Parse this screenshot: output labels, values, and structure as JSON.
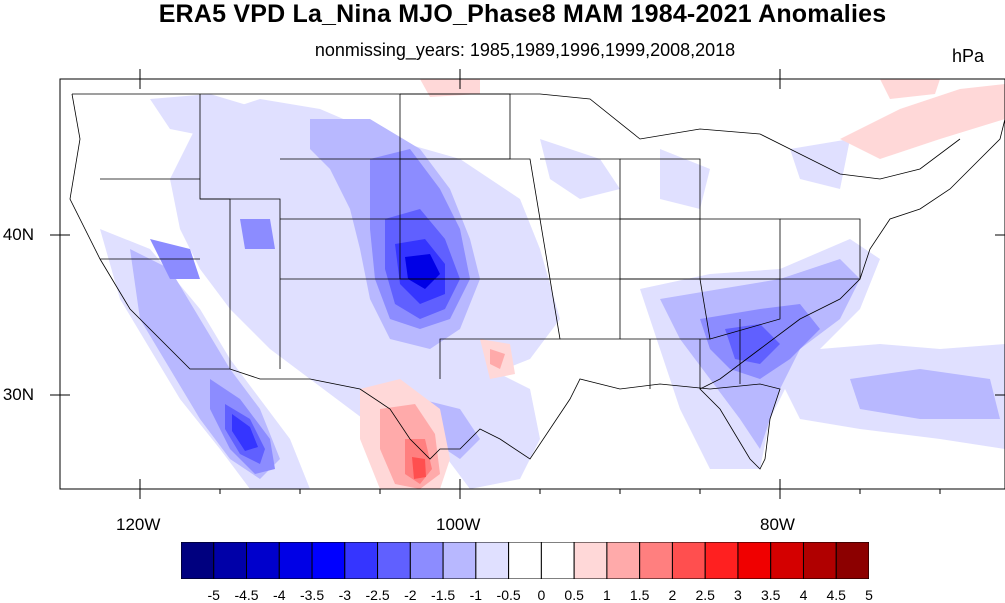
{
  "title": "ERA5 VPD La_Nina MJO_Phase8 MAM 1984-2021 Anomalies",
  "subtitle": "nonmissing_years: 1985,1989,1996,1999,2008,2018",
  "units": "hPa",
  "map": {
    "lon_range": [
      -125,
      -66
    ],
    "lat_range": [
      24.5,
      50
    ],
    "lon_labels": [
      "120W",
      "100W",
      "80W"
    ],
    "lat_labels": [
      "40N",
      "30N"
    ],
    "background": "#ffffff",
    "border_color": "#000000"
  },
  "colorbar": {
    "levels": [
      "-5",
      "-4.5",
      "-4",
      "-3.5",
      "-3",
      "-2.5",
      "-2",
      "-1.5",
      "-1",
      "-0.5",
      "0",
      "0.5",
      "1",
      "1.5",
      "2",
      "2.5",
      "3",
      "3.5",
      "4",
      "4.5",
      "5"
    ],
    "colors": [
      "#00007f",
      "#0000a8",
      "#0000cc",
      "#0000e6",
      "#0000ff",
      "#3535ff",
      "#6060ff",
      "#8c8cff",
      "#b8b8ff",
      "#e0e0ff",
      "#ffffff",
      "#ffffff",
      "#ffd8d8",
      "#ffaaaa",
      "#ff7f7f",
      "#ff4f4f",
      "#ff2020",
      "#f00000",
      "#d40000",
      "#b00000",
      "#8c0000"
    ]
  }
}
